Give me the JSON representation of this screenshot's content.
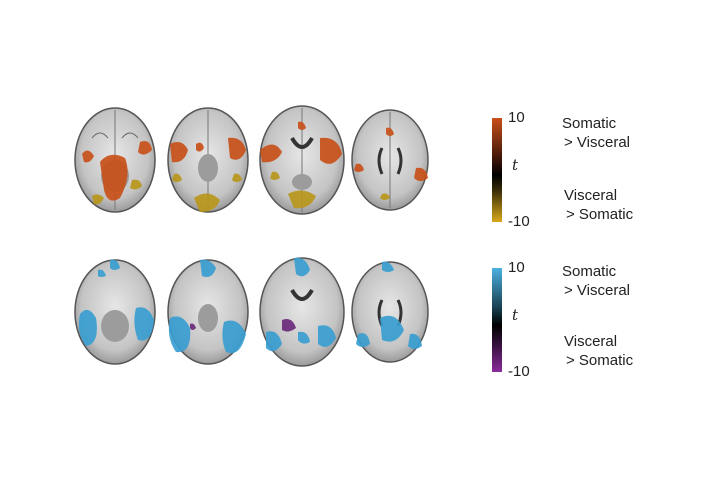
{
  "panels": [
    {
      "id": "top",
      "colorbar": {
        "max_label": "10",
        "min_label": "-10",
        "stat_label": "t",
        "high_color": "#c8501a",
        "mid_color": "#000000",
        "low_color": "#d8a81a"
      },
      "contrast_high": {
        "line1": "Somatic",
        "line2": "> Visceral"
      },
      "contrast_low": {
        "line1": "Visceral",
        "line2": "> Somatic"
      },
      "blob_colors": {
        "high": "#c8501a",
        "low": "#b8961a"
      }
    },
    {
      "id": "bottom",
      "colorbar": {
        "max_label": "10",
        "min_label": "-10",
        "stat_label": "t",
        "high_color": "#4ab0e0",
        "mid_color": "#000000",
        "low_color": "#8a2a9a"
      },
      "contrast_high": {
        "line1": "Somatic",
        "line2": "> Visceral"
      },
      "contrast_low": {
        "line1": "Visceral",
        "line2": "> Somatic"
      },
      "blob_colors": {
        "high": "#3a9ed0",
        "low": "#6a2a7a"
      }
    }
  ]
}
